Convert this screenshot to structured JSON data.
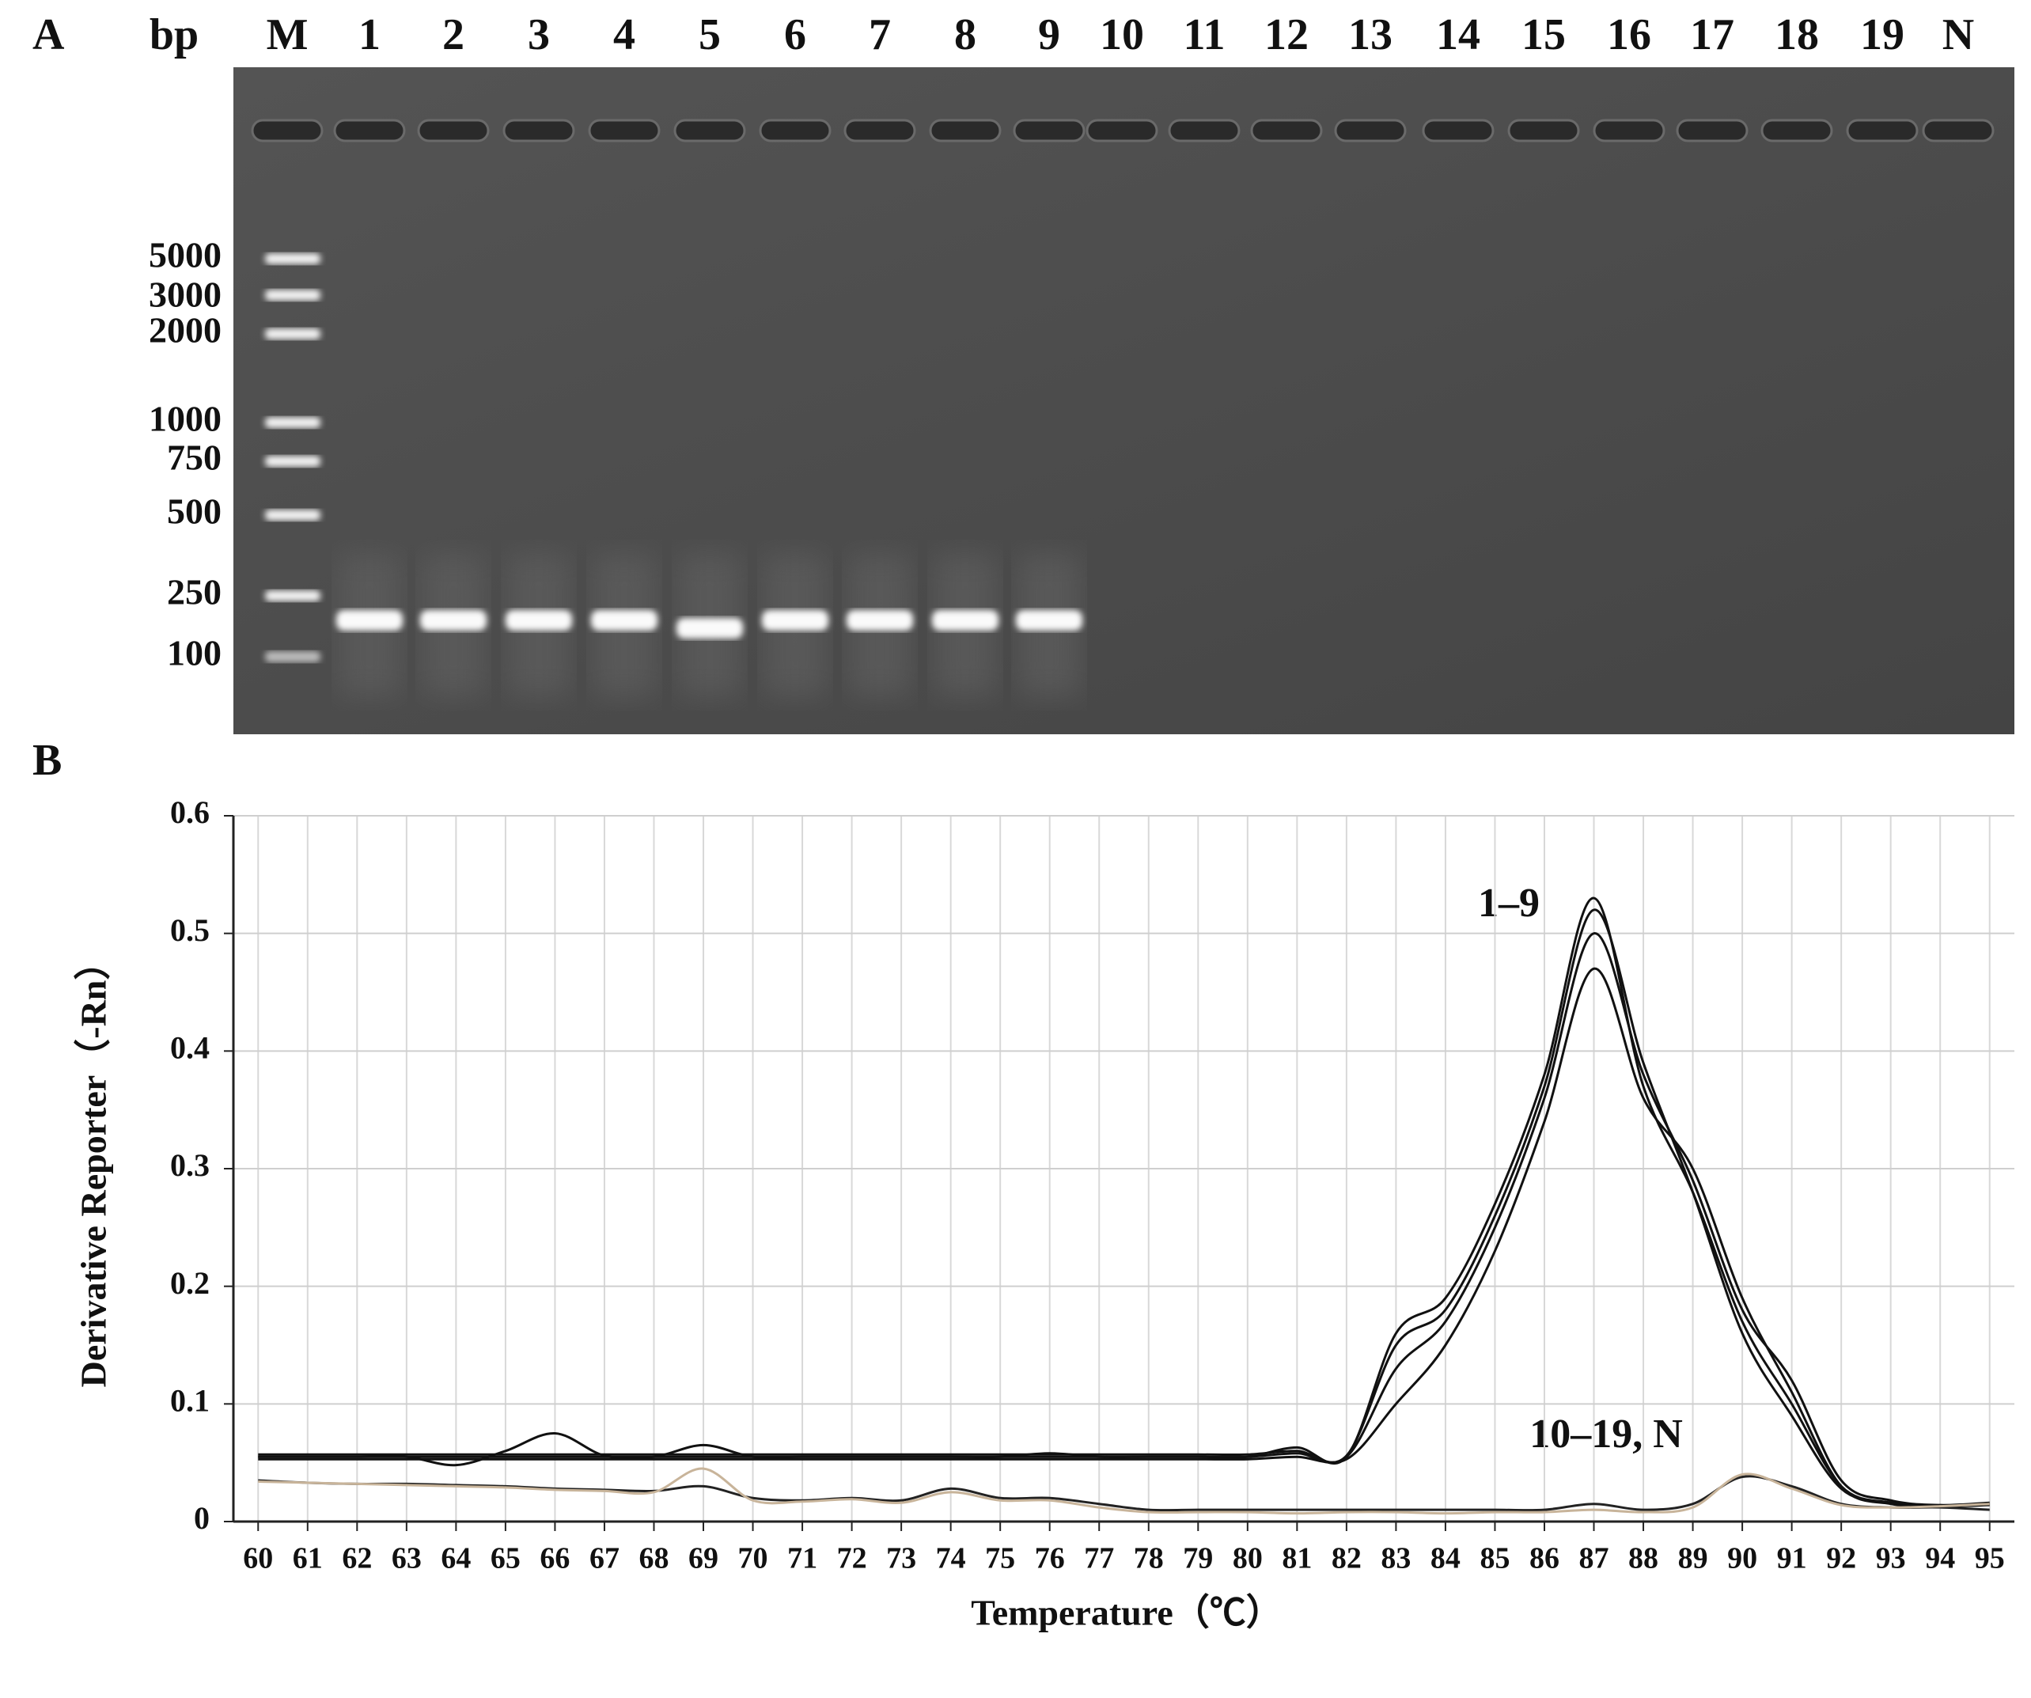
{
  "gel": {
    "panel_label": "A",
    "unit_label": "bp",
    "lanes": [
      "M",
      "1",
      "2",
      "3",
      "4",
      "5",
      "6",
      "7",
      "8",
      "9",
      "10",
      "11",
      "12",
      "13",
      "14",
      "15",
      "16",
      "17",
      "18",
      "19",
      "N"
    ],
    "ladder": [
      "5000",
      "3000",
      "2000",
      "1000",
      "750",
      "500",
      "250",
      "100"
    ]
  },
  "chart_data": {
    "type": "line",
    "panel_label": "B",
    "x_label": "Temperature（℃）",
    "y_label": "Derivative Reporter（-Rn）",
    "x": [
      60,
      61,
      62,
      63,
      64,
      65,
      66,
      67,
      68,
      69,
      70,
      71,
      72,
      73,
      74,
      75,
      76,
      77,
      78,
      79,
      80,
      81,
      82,
      83,
      84,
      85,
      86,
      87,
      88,
      89,
      90,
      91,
      92,
      93,
      94,
      95
    ],
    "xlim": [
      59.5,
      95.5
    ],
    "xticks": [
      60,
      61,
      62,
      63,
      64,
      65,
      66,
      67,
      68,
      69,
      70,
      71,
      72,
      73,
      74,
      75,
      76,
      77,
      78,
      79,
      80,
      81,
      82,
      83,
      84,
      85,
      86,
      87,
      88,
      89,
      90,
      91,
      92,
      93,
      94,
      95
    ],
    "ylim": [
      0,
      0.6
    ],
    "yticks": [
      0,
      0.1,
      0.2,
      0.3,
      0.4,
      0.5,
      0.6
    ],
    "grid": true,
    "series": [
      {
        "color": "#111111",
        "values": [
          0.055,
          0.055,
          0.055,
          0.055,
          0.048,
          0.06,
          0.075,
          0.056,
          0.055,
          0.065,
          0.055,
          0.055,
          0.055,
          0.055,
          0.055,
          0.055,
          0.058,
          0.055,
          0.055,
          0.055,
          0.055,
          0.063,
          0.055,
          0.16,
          0.19,
          0.27,
          0.38,
          0.53,
          0.37,
          0.28,
          0.17,
          0.1,
          0.03,
          0.016,
          0.013,
          0.015
        ]
      },
      {
        "color": "#111111",
        "values": [
          0.055,
          0.055,
          0.055,
          0.055,
          0.055,
          0.055,
          0.055,
          0.055,
          0.055,
          0.055,
          0.055,
          0.055,
          0.055,
          0.055,
          0.055,
          0.055,
          0.055,
          0.055,
          0.055,
          0.055,
          0.055,
          0.058,
          0.055,
          0.13,
          0.17,
          0.25,
          0.36,
          0.5,
          0.38,
          0.29,
          0.18,
          0.12,
          0.035,
          0.018,
          0.014,
          0.016
        ]
      },
      {
        "color": "#111111",
        "values": [
          0.053,
          0.053,
          0.053,
          0.053,
          0.053,
          0.053,
          0.053,
          0.053,
          0.053,
          0.053,
          0.053,
          0.053,
          0.053,
          0.053,
          0.053,
          0.053,
          0.053,
          0.053,
          0.053,
          0.053,
          0.053,
          0.055,
          0.053,
          0.1,
          0.15,
          0.23,
          0.34,
          0.47,
          0.36,
          0.3,
          0.19,
          0.11,
          0.03,
          0.015,
          0.013,
          0.014
        ]
      },
      {
        "color": "#111111",
        "values": [
          0.057,
          0.057,
          0.057,
          0.057,
          0.057,
          0.057,
          0.057,
          0.057,
          0.057,
          0.057,
          0.057,
          0.057,
          0.057,
          0.057,
          0.057,
          0.057,
          0.057,
          0.057,
          0.057,
          0.057,
          0.057,
          0.06,
          0.056,
          0.15,
          0.18,
          0.26,
          0.37,
          0.52,
          0.39,
          0.28,
          0.16,
          0.09,
          0.028,
          0.016,
          0.013,
          0.015
        ]
      },
      {
        "color": "#222222",
        "values": [
          0.035,
          0.033,
          0.032,
          0.032,
          0.031,
          0.03,
          0.028,
          0.027,
          0.026,
          0.03,
          0.02,
          0.018,
          0.02,
          0.018,
          0.028,
          0.02,
          0.02,
          0.015,
          0.01,
          0.01,
          0.01,
          0.01,
          0.01,
          0.01,
          0.01,
          0.01,
          0.01,
          0.015,
          0.01,
          0.015,
          0.038,
          0.03,
          0.015,
          0.012,
          0.012,
          0.01
        ]
      },
      {
        "color": "#c8b49a",
        "values": [
          0.034,
          0.033,
          0.032,
          0.031,
          0.03,
          0.029,
          0.027,
          0.026,
          0.025,
          0.045,
          0.018,
          0.017,
          0.019,
          0.016,
          0.025,
          0.018,
          0.018,
          0.012,
          0.008,
          0.008,
          0.008,
          0.007,
          0.008,
          0.008,
          0.007,
          0.008,
          0.008,
          0.01,
          0.008,
          0.012,
          0.04,
          0.028,
          0.014,
          0.012,
          0.013,
          0.015
        ]
      }
    ],
    "annotations": [
      "1–9",
      "10–19, N"
    ]
  }
}
